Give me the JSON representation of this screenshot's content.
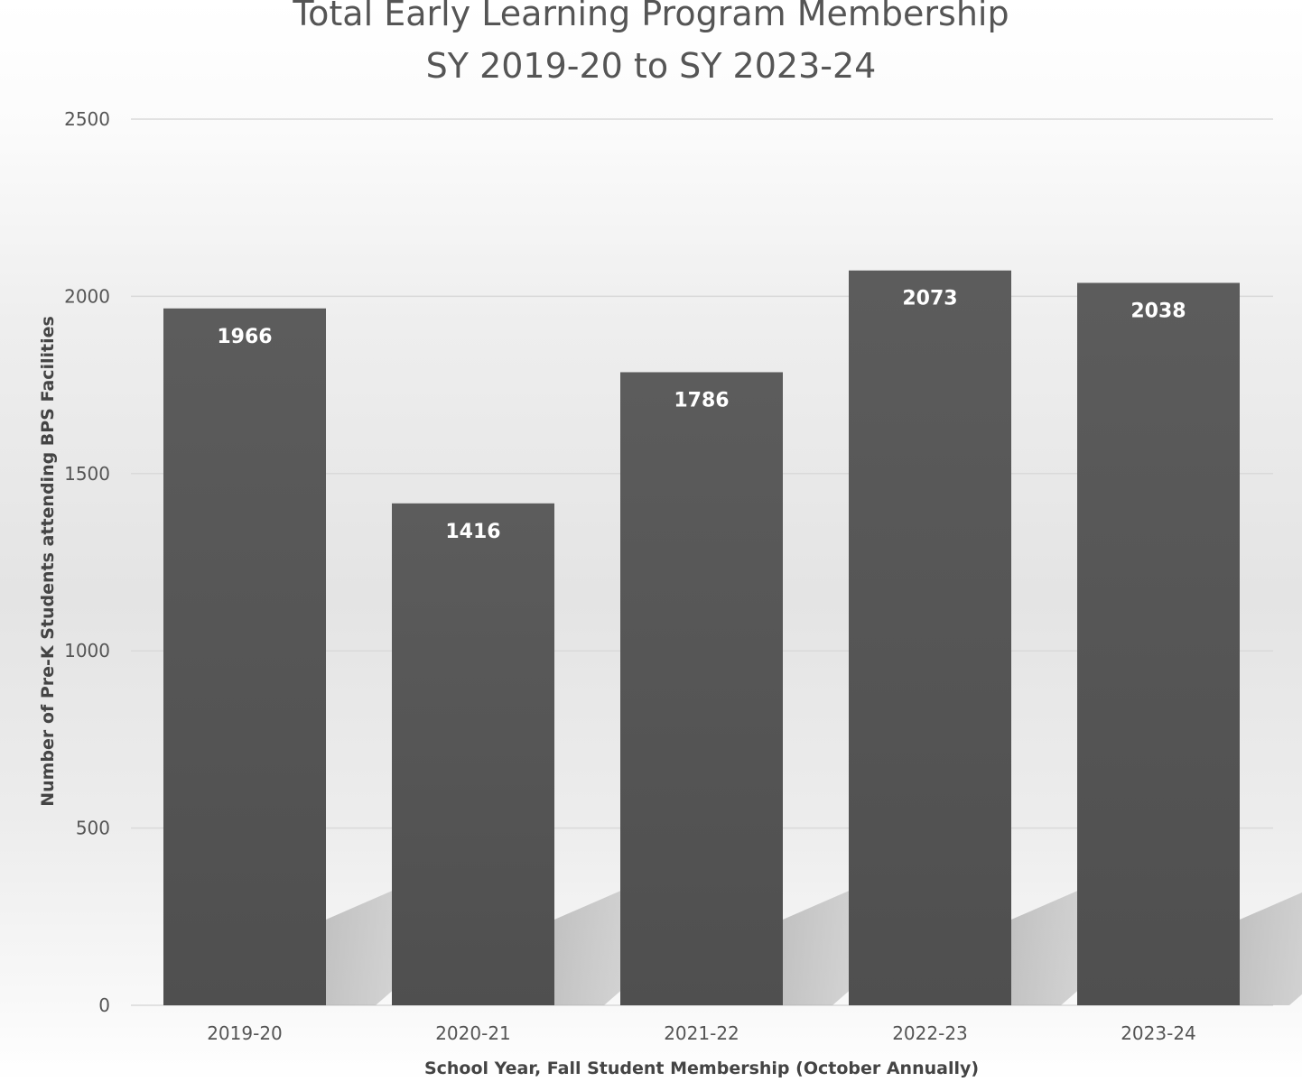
{
  "chart_data": {
    "type": "bar",
    "title_lines": [
      "Total Early Learning Program Membership",
      "SY 2019-20 to SY 2023-24"
    ],
    "xlabel": "School Year, Fall Student Membership (October Annually)",
    "ylabel": "Number of Pre-K Students attending BPS Facilities",
    "categories": [
      "2019-20",
      "2020-21",
      "2021-22",
      "2022-23",
      "2023-24"
    ],
    "values": [
      1966,
      1416,
      1786,
      2073,
      2038
    ],
    "data_labels": [
      "1966",
      "1416",
      "1786",
      "2073",
      "2038"
    ],
    "ylim": [
      0,
      2500
    ],
    "yticks": [
      0,
      500,
      1000,
      1500,
      2000,
      2500
    ],
    "ytick_labels": [
      "0",
      "500",
      "1000",
      "1500",
      "2000",
      "2500"
    ],
    "grid": true,
    "legend": "none",
    "colors": {
      "bar": "#585858",
      "bar_top": "#5c5c5c",
      "bar_bottom": "#4f4f4f",
      "gridline": "#d9d9d9",
      "shadow": "#b5b5b5",
      "text": "#555555",
      "data_label": "#ffffff"
    }
  }
}
